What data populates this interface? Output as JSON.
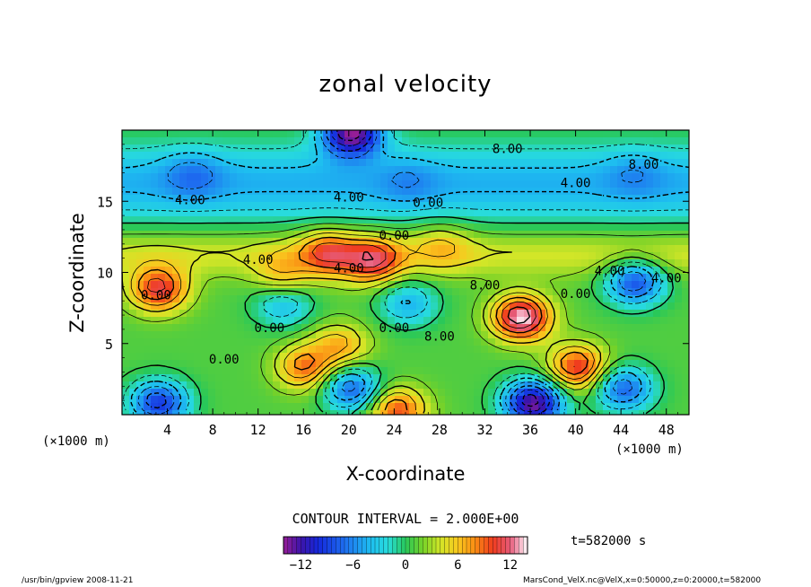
{
  "chart_data": {
    "type": "heatmap",
    "title": "zonal velocity",
    "xlabel": "X-coordinate",
    "ylabel": "Z-coordinate",
    "x_unit": "(×1000 m)",
    "y_unit": "(×1000 m)",
    "xlim": [
      0,
      50
    ],
    "ylim": [
      0,
      20
    ],
    "x_ticks": [
      4,
      8,
      12,
      16,
      20,
      24,
      28,
      32,
      36,
      40,
      44,
      48
    ],
    "y_ticks": [
      5,
      10,
      15
    ],
    "contour_interval_label": "CONTOUR INTERVAL = 2.000E+00",
    "contour_labels": [
      "8.00",
      "4.00",
      "4.00",
      "8.00",
      "0.00",
      "0.00",
      "4.00",
      "4.00",
      "0.00",
      "8.00",
      "0.00",
      "0.00",
      "0.00",
      "0.00",
      "4.00",
      "4.00",
      "4.00",
      "8.00"
    ],
    "time_label": "t=582000 s",
    "colorbar": {
      "min": -14,
      "max": 14,
      "ticks": [
        -12,
        -6,
        0,
        6,
        12
      ]
    },
    "features": [
      {
        "x": 35,
        "z": 7,
        "value": 13
      },
      {
        "x": 3,
        "z": 9,
        "value": 10
      },
      {
        "x": 18,
        "z": 11.5,
        "value": 8
      },
      {
        "x": 22,
        "z": 11,
        "value": 9
      },
      {
        "x": 16,
        "z": 3.5,
        "value": 8
      },
      {
        "x": 19,
        "z": 5,
        "value": 6
      },
      {
        "x": 40,
        "z": 3.5,
        "value": 10
      },
      {
        "x": 24,
        "z": 0.5,
        "value": 9
      },
      {
        "x": 36,
        "z": 1,
        "value": -14
      },
      {
        "x": 20,
        "z": 20,
        "value": -14
      },
      {
        "x": 45,
        "z": 9.5,
        "value": -9
      },
      {
        "x": 25,
        "z": 8,
        "value": -5
      },
      {
        "x": 14,
        "z": 8,
        "value": -5
      },
      {
        "x": 3,
        "z": 1,
        "value": -10
      },
      {
        "x": 20,
        "z": 2,
        "value": -8
      },
      {
        "x": 44,
        "z": 2,
        "value": -8
      },
      {
        "x": 6,
        "z": 17,
        "value": -4
      },
      {
        "x": 25,
        "z": 16.5,
        "value": -3
      },
      {
        "x": 45,
        "z": 17,
        "value": -3
      },
      {
        "x": 28,
        "z": 12,
        "value": 4
      },
      {
        "x": 14,
        "z": 10,
        "value": 5
      }
    ]
  },
  "footer": {
    "left": "/usr/bin/gpview  2008-11-21",
    "right": "MarsCond_VelX.nc@VelX,x=0:50000,z=0:20000,t=582000"
  }
}
